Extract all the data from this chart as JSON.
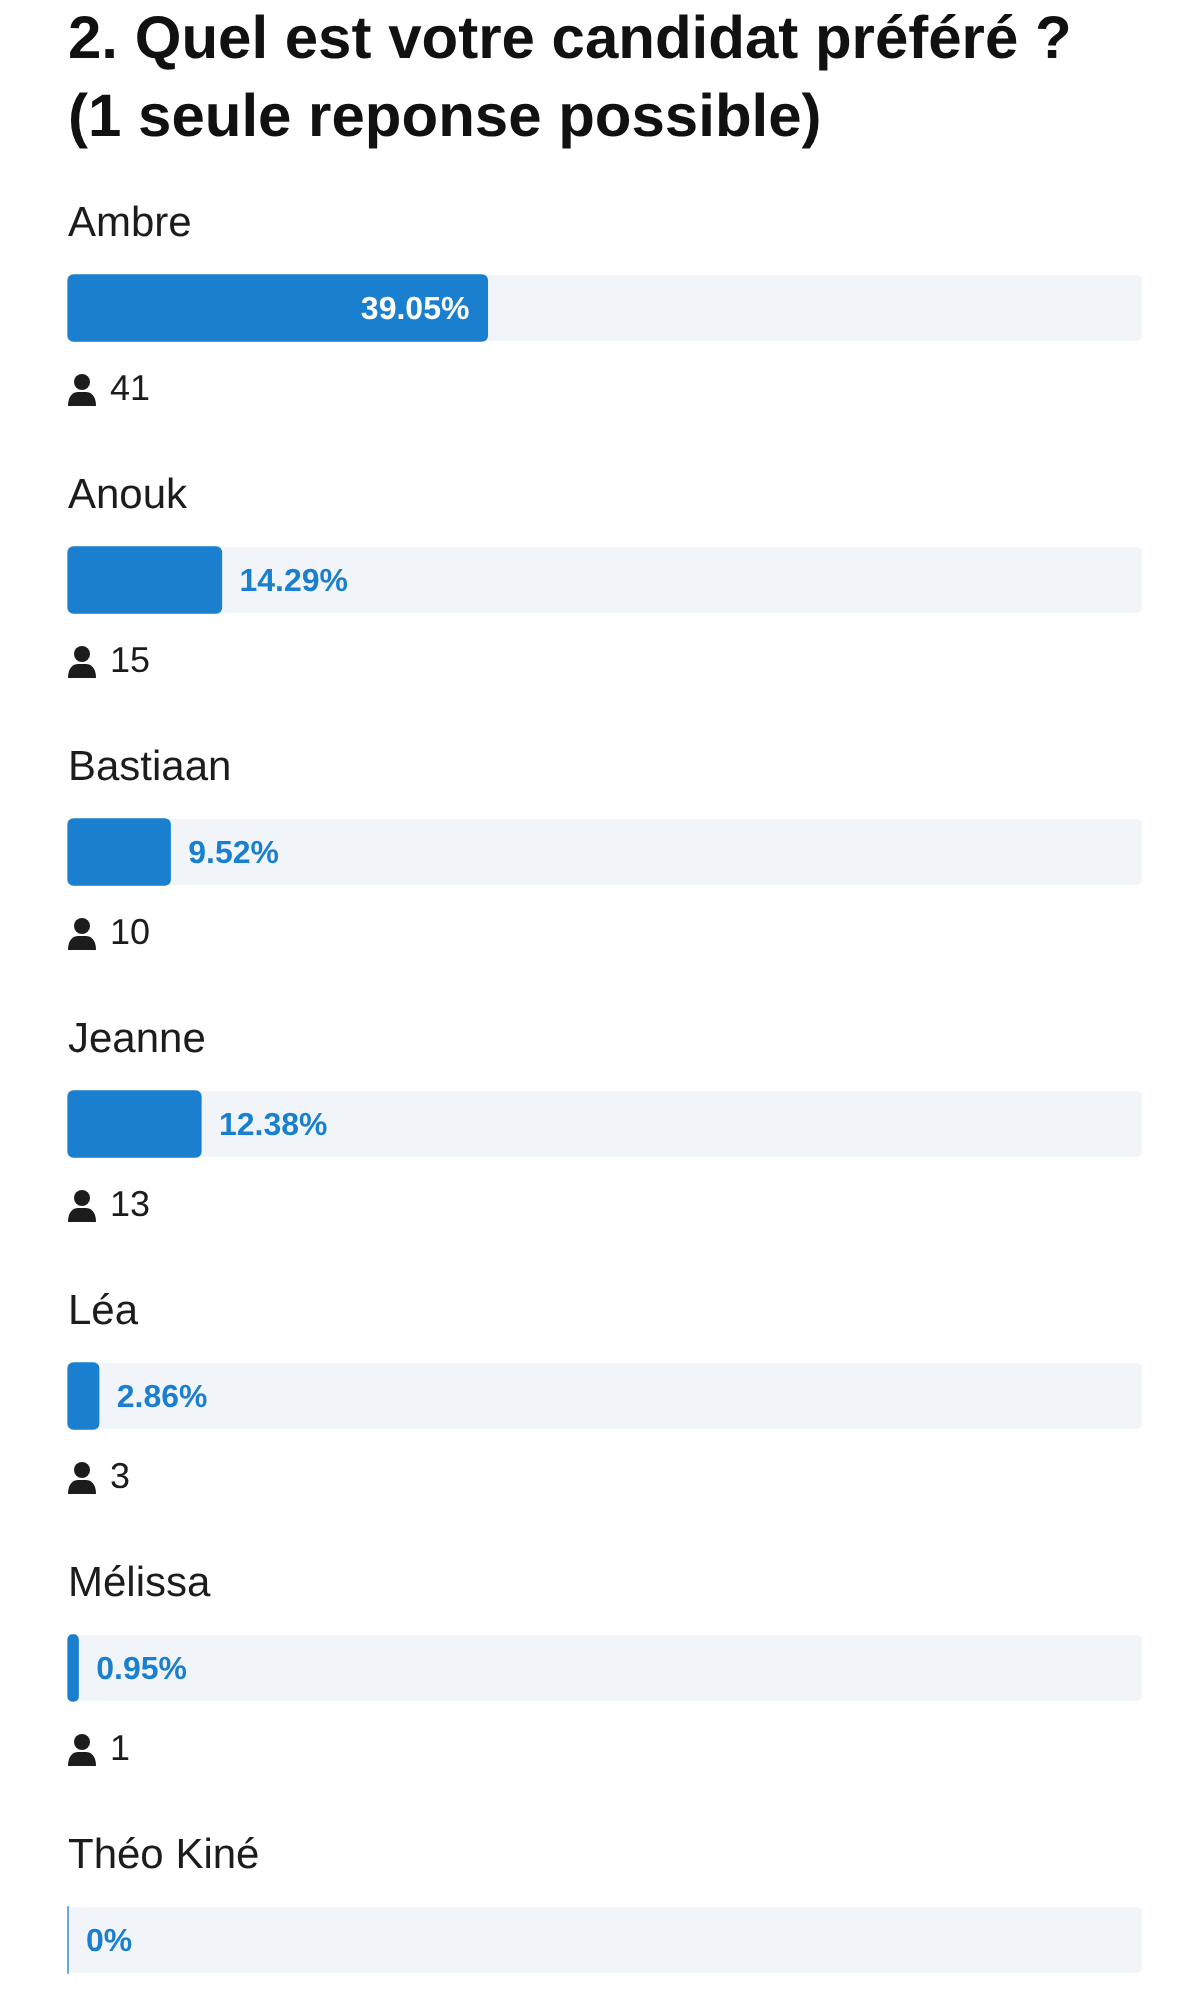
{
  "chart_data": {
    "type": "bar",
    "orientation": "horizontal",
    "title": "2. Quel est votre candidat préféré ? (1 seule reponse possible)",
    "categories": [
      "Ambre",
      "Anouk",
      "Bastiaan",
      "Jeanne",
      "Léa",
      "Mélissa",
      "Théo Kiné"
    ],
    "values": [
      39.05,
      14.29,
      9.52,
      12.38,
      2.86,
      0.95,
      0
    ],
    "color": "#1a7fcf",
    "value_labels": [
      "39.05%",
      "14.29%",
      "9.52%",
      "12.38%",
      "2.86%",
      "0.95%",
      "0%"
    ],
    "xlim": [
      0,
      100
    ],
    "tick_labels": "y",
    "annotations": [
      "41",
      "15",
      "10",
      "13",
      "3",
      "1"
    ]
  }
}
